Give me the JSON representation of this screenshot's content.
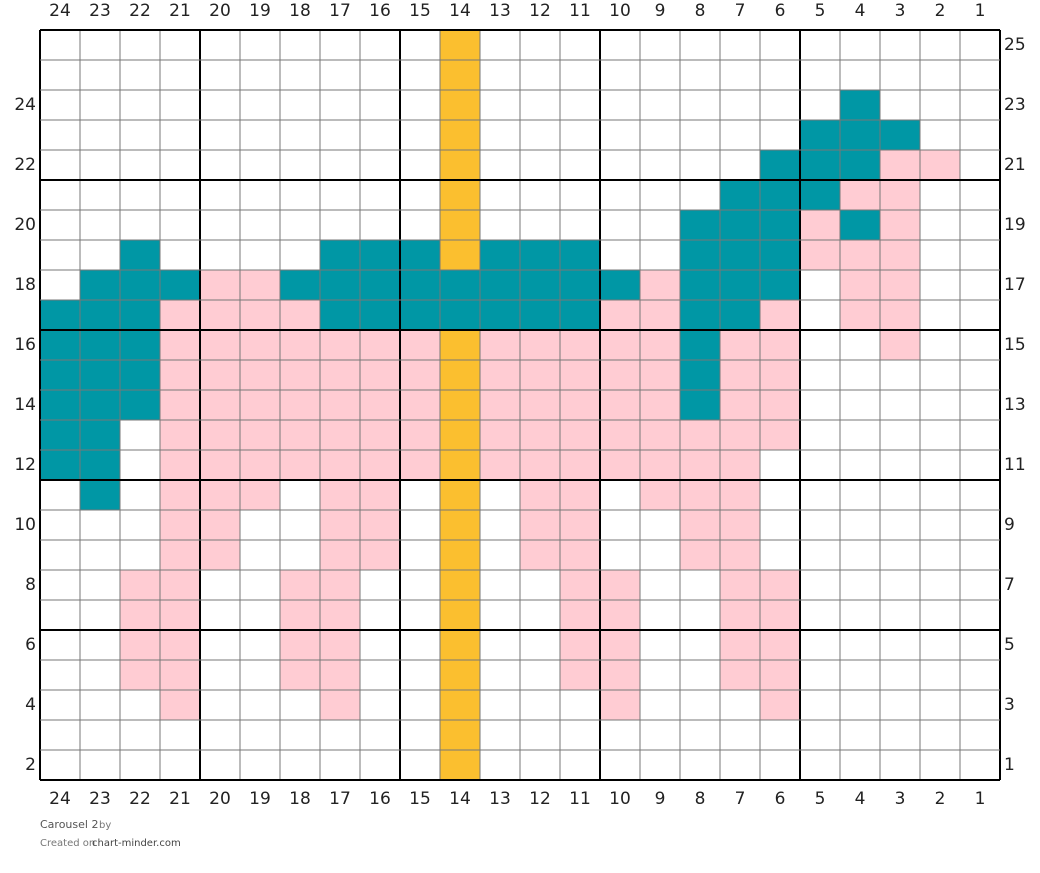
{
  "title": "Carousel 2",
  "by": "by",
  "created_on": "Created on",
  "site": "chart-minder.com",
  "column_labels": [
    24,
    23,
    22,
    21,
    20,
    19,
    18,
    17,
    16,
    15,
    14,
    13,
    12,
    11,
    10,
    9,
    8,
    7,
    6,
    5,
    4,
    3,
    2,
    1
  ],
  "row_labels": [
    25,
    24,
    23,
    22,
    21,
    20,
    19,
    18,
    17,
    16,
    15,
    14,
    13,
    12,
    11,
    10,
    9,
    8,
    7,
    6,
    5,
    4,
    3,
    2,
    1
  ],
  "palette": {
    "W": "#ffffff",
    "T": "#0097a5",
    "P": "#ffccd3",
    "Y": "#fbbf2f"
  },
  "cells": [
    "WWWWWWWWWWYWWWWWWWWWWWWW",
    "WWWWWWWWWWYWWWWWWWWWWWWW",
    "WWWWWWWWWWYWWWWWWWWWTWWW",
    "WWWWWWWWWWYWWWWWWWWTTTWW",
    "WWWWWWWWWWYWWWWWWWTTTPPW",
    "WWWWWWWWWWYWWWWWWTTTPPWW",
    "WWWWWWWWWWYWWWWWTTTPTPWW",
    "WWTWWWWTTTYTTTWWTTTPPPWW",
    "WTTTPPTTTTTTTTTPTTTWPPWW",
    "TTTPPPPTTTTTTTPPTTPWPPWW",
    "TTTPPPPPPPYPPPPPTPPWWPWW",
    "TTTPPPPPPPYPPPPPTPPWWWWW",
    "TTTPPPPPPPYPPPPPTPPWWWWW",
    "TTWPPPPPPPYPPPPPPPPWWWWW",
    "TTWPPPPPPPYPPPPPPPWWWWWW",
    "WTWPPPWPPWYWPPWPPPWWWWWW",
    "WWWPPWWPPWYWPPWWPPWWWWWW",
    "WWWPPWWPPWYWPPWWPPWWWWWW",
    "WWPPWWPPWWYWWPPWWPPWWWWW",
    "WWPPWWPPWWYWWPPWWPPWWWWW",
    "WWPPWWPPWWYWWPPWWPPWWWWW",
    "WWPPWWPPWWYWWPPWWPPWWWWW",
    "WWWPWWWPWWYWWWPWWWPWWWWW",
    "WWWWWWWWWWYWWWWWWWWWWWWW",
    "WWWWWWWWWWYWWWWWWWWWWWWW"
  ]
}
